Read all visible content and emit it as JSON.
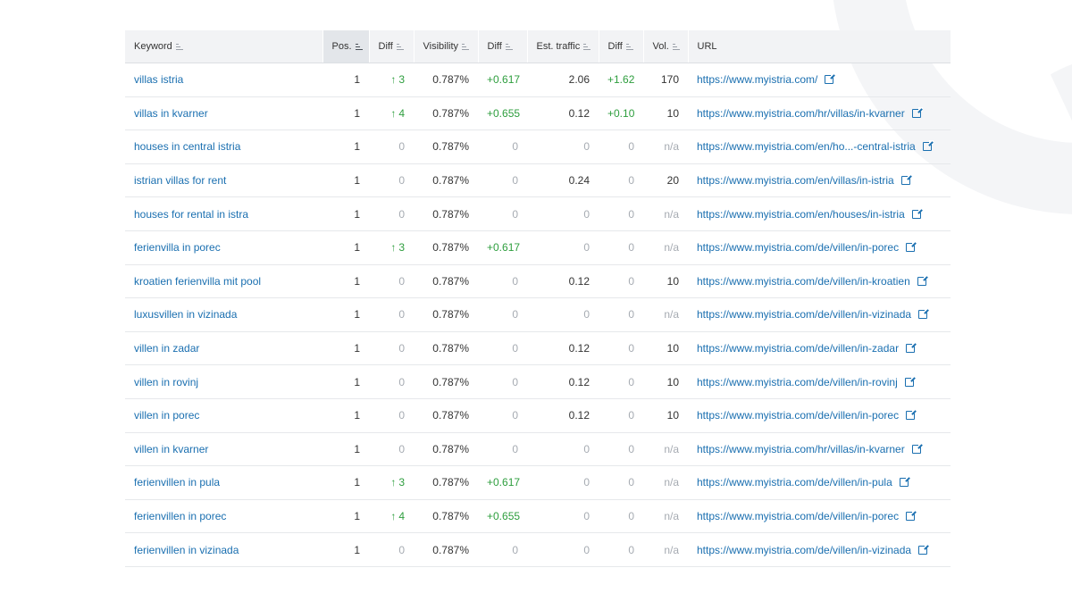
{
  "columns": [
    {
      "label": "Keyword",
      "icon": "sort-icon"
    },
    {
      "label": "Pos.",
      "icon": "sort-icon",
      "active": true
    },
    {
      "label": "Diff",
      "icon": "sort-icon"
    },
    {
      "label": "Visibility",
      "icon": "sort-icon"
    },
    {
      "label": "Diff",
      "icon": "sort-icon"
    },
    {
      "label": "Est. traffic",
      "icon": "sort-icon"
    },
    {
      "label": "Diff",
      "icon": "sort-icon"
    },
    {
      "label": "Vol.",
      "icon": "sort-icon"
    },
    {
      "label": "URL"
    }
  ],
  "rows": [
    {
      "keyword": "villas istria",
      "pos": "1",
      "pos_diff": "3",
      "pos_diff_up": true,
      "visibility": "0.787%",
      "vis_diff": "+0.617",
      "traffic": "2.06",
      "traffic_diff": "+1.62",
      "volume": "170",
      "url": "https://www.myistria.com/"
    },
    {
      "keyword": "villas in kvarner",
      "pos": "1",
      "pos_diff": "4",
      "pos_diff_up": true,
      "visibility": "0.787%",
      "vis_diff": "+0.655",
      "traffic": "0.12",
      "traffic_diff": "+0.10",
      "volume": "10",
      "url": "https://www.myistria.com/hr/villas/in-kvarner"
    },
    {
      "keyword": "houses in central istria",
      "pos": "1",
      "pos_diff": "0",
      "pos_diff_up": false,
      "visibility": "0.787%",
      "vis_diff": "0",
      "traffic": "0",
      "traffic_diff": "0",
      "volume": "n/a",
      "url": "https://www.myistria.com/en/ho...-central-istria"
    },
    {
      "keyword": "istrian villas for rent",
      "pos": "1",
      "pos_diff": "0",
      "pos_diff_up": false,
      "visibility": "0.787%",
      "vis_diff": "0",
      "traffic": "0.24",
      "traffic_diff": "0",
      "volume": "20",
      "url": "https://www.myistria.com/en/villas/in-istria"
    },
    {
      "keyword": "houses for rental in istra",
      "pos": "1",
      "pos_diff": "0",
      "pos_diff_up": false,
      "visibility": "0.787%",
      "vis_diff": "0",
      "traffic": "0",
      "traffic_diff": "0",
      "volume": "n/a",
      "url": "https://www.myistria.com/en/houses/in-istria"
    },
    {
      "keyword": "ferienvilla in porec",
      "pos": "1",
      "pos_diff": "3",
      "pos_diff_up": true,
      "visibility": "0.787%",
      "vis_diff": "+0.617",
      "traffic": "0",
      "traffic_diff": "0",
      "volume": "n/a",
      "url": "https://www.myistria.com/de/villen/in-porec"
    },
    {
      "keyword": "kroatien ferienvilla mit pool",
      "pos": "1",
      "pos_diff": "0",
      "pos_diff_up": false,
      "visibility": "0.787%",
      "vis_diff": "0",
      "traffic": "0.12",
      "traffic_diff": "0",
      "volume": "10",
      "url": "https://www.myistria.com/de/villen/in-kroatien"
    },
    {
      "keyword": "luxusvillen in vizinada",
      "pos": "1",
      "pos_diff": "0",
      "pos_diff_up": false,
      "visibility": "0.787%",
      "vis_diff": "0",
      "traffic": "0",
      "traffic_diff": "0",
      "volume": "n/a",
      "url": "https://www.myistria.com/de/villen/in-vizinada"
    },
    {
      "keyword": "villen in zadar",
      "pos": "1",
      "pos_diff": "0",
      "pos_diff_up": false,
      "visibility": "0.787%",
      "vis_diff": "0",
      "traffic": "0.12",
      "traffic_diff": "0",
      "volume": "10",
      "url": "https://www.myistria.com/de/villen/in-zadar"
    },
    {
      "keyword": "villen in rovinj",
      "pos": "1",
      "pos_diff": "0",
      "pos_diff_up": false,
      "visibility": "0.787%",
      "vis_diff": "0",
      "traffic": "0.12",
      "traffic_diff": "0",
      "volume": "10",
      "url": "https://www.myistria.com/de/villen/in-rovinj"
    },
    {
      "keyword": "villen in porec",
      "pos": "1",
      "pos_diff": "0",
      "pos_diff_up": false,
      "visibility": "0.787%",
      "vis_diff": "0",
      "traffic": "0.12",
      "traffic_diff": "0",
      "volume": "10",
      "url": "https://www.myistria.com/de/villen/in-porec"
    },
    {
      "keyword": "villen in kvarner",
      "pos": "1",
      "pos_diff": "0",
      "pos_diff_up": false,
      "visibility": "0.787%",
      "vis_diff": "0",
      "traffic": "0",
      "traffic_diff": "0",
      "volume": "n/a",
      "url": "https://www.myistria.com/hr/villas/in-kvarner"
    },
    {
      "keyword": "ferienvillen in pula",
      "pos": "1",
      "pos_diff": "3",
      "pos_diff_up": true,
      "visibility": "0.787%",
      "vis_diff": "+0.617",
      "traffic": "0",
      "traffic_diff": "0",
      "volume": "n/a",
      "url": "https://www.myistria.com/de/villen/in-pula"
    },
    {
      "keyword": "ferienvillen in porec",
      "pos": "1",
      "pos_diff": "4",
      "pos_diff_up": true,
      "visibility": "0.787%",
      "vis_diff": "+0.655",
      "traffic": "0",
      "traffic_diff": "0",
      "volume": "n/a",
      "url": "https://www.myistria.com/de/villen/in-porec"
    },
    {
      "keyword": "ferienvillen in vizinada",
      "pos": "1",
      "pos_diff": "0",
      "pos_diff_up": false,
      "visibility": "0.787%",
      "vis_diff": "0",
      "traffic": "0",
      "traffic_diff": "0",
      "volume": "n/a",
      "url": "https://www.myistria.com/de/villen/in-vizinada"
    }
  ],
  "colors": {
    "link": "#1a6fb0",
    "positive": "#2e9e3e",
    "muted": "#a6abb2",
    "header_bg": "#f2f3f5"
  }
}
